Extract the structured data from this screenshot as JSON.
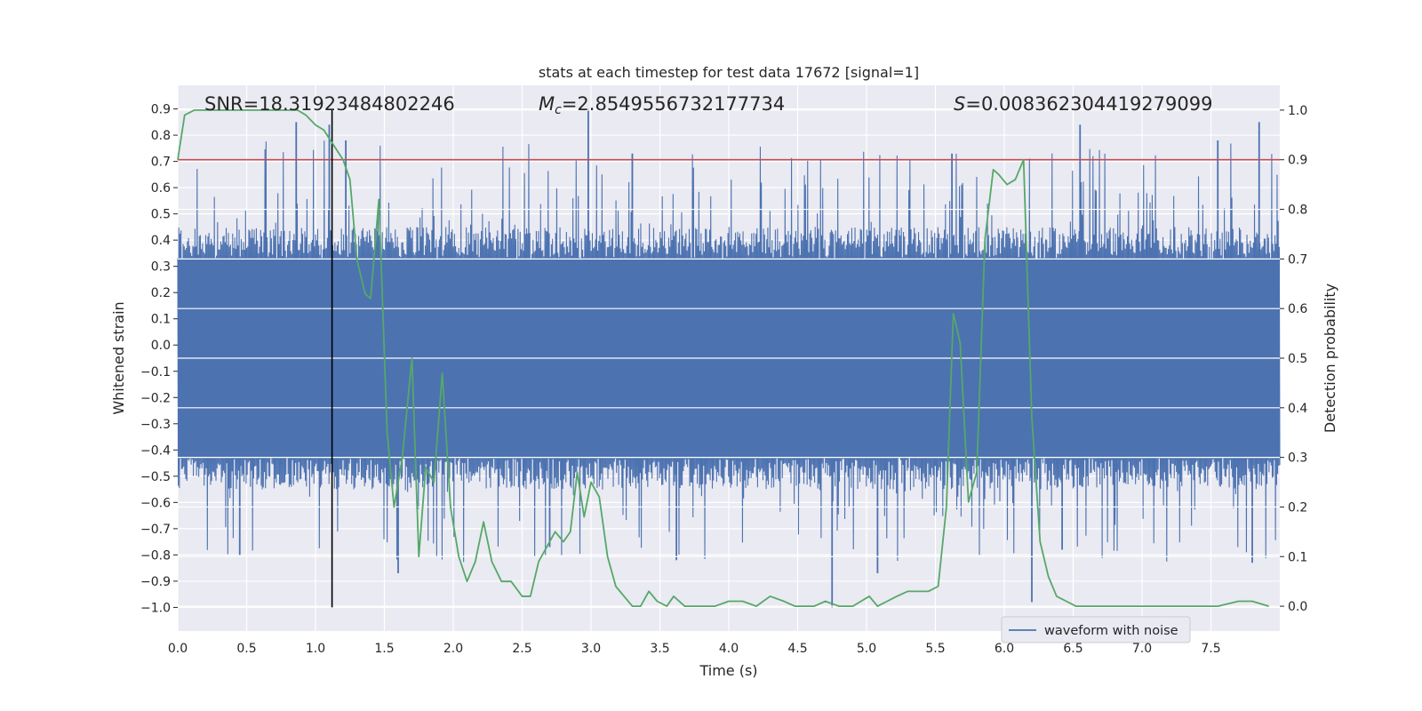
{
  "chart_data": {
    "type": "line",
    "title": "stats at each timestep for test data 17672 [signal=1]",
    "xlabel": "Time (s)",
    "ylabel_left": "Whitened strain",
    "ylabel_right": "Detection probability",
    "xlim": [
      0.0,
      8.0
    ],
    "ylim_left": [
      -1.09,
      0.99
    ],
    "ylim_right": [
      -0.05,
      1.05
    ],
    "x_ticks": [
      "0.0",
      "0.5",
      "1.0",
      "1.5",
      "2.0",
      "2.5",
      "3.0",
      "3.5",
      "4.0",
      "4.5",
      "5.0",
      "5.5",
      "6.0",
      "6.5",
      "7.0",
      "7.5"
    ],
    "y_ticks_left": [
      "0.9",
      "0.8",
      "0.7",
      "0.6",
      "0.5",
      "0.4",
      "0.3",
      "0.2",
      "0.1",
      "0.0",
      "−0.1",
      "−0.2",
      "−0.3",
      "−0.4",
      "−0.5",
      "−0.6",
      "−0.7",
      "−0.8",
      "−0.9",
      "−1.0"
    ],
    "y_ticks_right": [
      "1.0",
      "0.9",
      "0.8",
      "0.7",
      "0.6",
      "0.5",
      "0.4",
      "0.3",
      "0.2",
      "0.1",
      "0.0"
    ],
    "annotations": {
      "snr": "SNR=18.31923484802246",
      "mc_symbol": "M",
      "mc_sub": "c",
      "mc_value": "=2.8549556732177734",
      "s_symbol": "S",
      "s_value": "=0.008362304419279099"
    },
    "threshold_line": {
      "axis": "right",
      "y": 0.9,
      "color": "#c44e52"
    },
    "marker_line": {
      "x": 1.12,
      "color": "#000000"
    },
    "series": [
      {
        "name": "waveform with noise",
        "axis": "left",
        "kind": "noise-strain",
        "color": "#4c72b0",
        "samples": 2048,
        "band": [
          -0.43,
          0.33
        ],
        "extremes": [
          -1.0,
          0.9
        ],
        "spikes": [
          {
            "x": 0.86,
            "y": 0.85
          },
          {
            "x": 1.1,
            "y": 0.84
          },
          {
            "x": 1.22,
            "y": 0.78
          },
          {
            "x": 2.98,
            "y": 0.9
          },
          {
            "x": 3.3,
            "y": 0.73
          },
          {
            "x": 5.62,
            "y": 0.73
          },
          {
            "x": 6.55,
            "y": 0.84
          },
          {
            "x": 7.85,
            "y": 0.85
          },
          {
            "x": 7.55,
            "y": 0.78
          },
          {
            "x": 1.6,
            "y": -0.87
          },
          {
            "x": 2.7,
            "y": -0.77
          },
          {
            "x": 4.75,
            "y": -1.0
          },
          {
            "x": 6.2,
            "y": -0.98
          },
          {
            "x": 5.08,
            "y": -0.87
          },
          {
            "x": 3.62,
            "y": -0.82
          },
          {
            "x": 7.8,
            "y": -0.83
          },
          {
            "x": 0.45,
            "y": -0.8
          },
          {
            "x": 6.42,
            "y": -0.78
          }
        ]
      },
      {
        "name": "detection probability",
        "axis": "right",
        "color": "#55a868",
        "x": [
          0.0,
          0.05,
          0.12,
          0.3,
          0.6,
          0.87,
          0.93,
          1.0,
          1.06,
          1.13,
          1.2,
          1.25,
          1.3,
          1.36,
          1.4,
          1.46,
          1.52,
          1.57,
          1.63,
          1.7,
          1.75,
          1.8,
          1.86,
          1.92,
          1.98,
          2.04,
          2.1,
          2.16,
          2.22,
          2.28,
          2.35,
          2.42,
          2.5,
          2.56,
          2.62,
          2.68,
          2.74,
          2.8,
          2.85,
          2.9,
          2.95,
          3.0,
          3.06,
          3.12,
          3.18,
          3.24,
          3.3,
          3.36,
          3.42,
          3.48,
          3.55,
          3.6,
          3.68,
          3.75,
          3.82,
          3.9,
          4.0,
          4.1,
          4.2,
          4.3,
          4.4,
          4.48,
          4.55,
          4.62,
          4.7,
          4.8,
          4.9,
          4.96,
          5.02,
          5.08,
          5.15,
          5.22,
          5.3,
          5.45,
          5.52,
          5.58,
          5.63,
          5.68,
          5.74,
          5.8,
          5.86,
          5.92,
          5.96,
          6.02,
          6.08,
          6.14,
          6.2,
          6.26,
          6.32,
          6.38,
          6.45,
          6.52,
          6.6,
          6.8,
          7.0,
          7.2,
          7.4,
          7.55,
          7.7,
          7.8,
          7.92
        ],
        "y": [
          0.9,
          0.99,
          1.0,
          1.0,
          1.0,
          1.0,
          0.99,
          0.97,
          0.96,
          0.93,
          0.9,
          0.86,
          0.7,
          0.63,
          0.62,
          0.82,
          0.35,
          0.2,
          0.3,
          0.5,
          0.1,
          0.28,
          0.25,
          0.47,
          0.2,
          0.1,
          0.05,
          0.09,
          0.17,
          0.09,
          0.05,
          0.05,
          0.02,
          0.02,
          0.09,
          0.12,
          0.15,
          0.13,
          0.15,
          0.27,
          0.18,
          0.25,
          0.22,
          0.1,
          0.04,
          0.02,
          0.0,
          0.0,
          0.03,
          0.01,
          0.0,
          0.02,
          0.0,
          0.0,
          0.0,
          0.0,
          0.01,
          0.01,
          0.0,
          0.02,
          0.01,
          0.0,
          0.0,
          0.0,
          0.01,
          0.0,
          0.0,
          0.01,
          0.02,
          0.0,
          0.01,
          0.02,
          0.03,
          0.03,
          0.04,
          0.2,
          0.59,
          0.53,
          0.21,
          0.27,
          0.74,
          0.88,
          0.87,
          0.85,
          0.86,
          0.9,
          0.38,
          0.13,
          0.06,
          0.02,
          0.01,
          0.0,
          0.0,
          0.0,
          0.0,
          0.0,
          0.0,
          0.0,
          0.01,
          0.01,
          0.0
        ]
      }
    ],
    "legend": {
      "location": "lower-center-right",
      "entries": [
        "waveform with noise"
      ]
    }
  }
}
